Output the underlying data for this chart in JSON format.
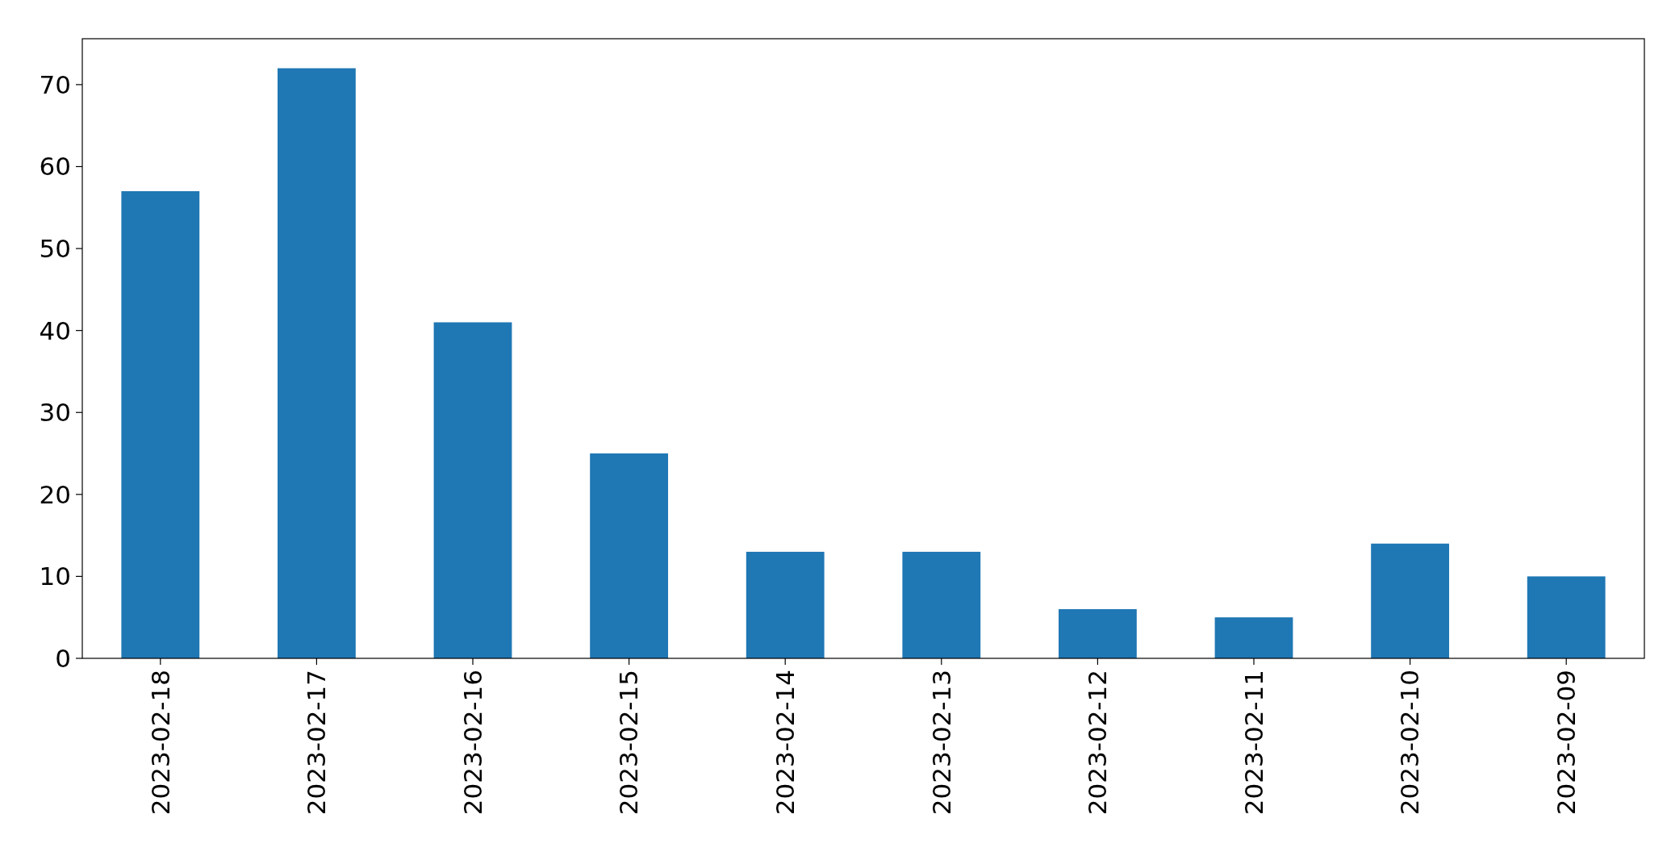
{
  "chart_data": {
    "type": "bar",
    "categories": [
      "2023-02-18",
      "2023-02-17",
      "2023-02-16",
      "2023-02-15",
      "2023-02-14",
      "2023-02-13",
      "2023-02-12",
      "2023-02-11",
      "2023-02-10",
      "2023-02-09"
    ],
    "values": [
      57,
      72,
      41,
      25,
      13,
      13,
      6,
      5,
      14,
      10
    ],
    "color": "#1f77b4",
    "ylim": [
      0,
      75.6
    ],
    "yticks": [
      0,
      10,
      20,
      30,
      40,
      50,
      60,
      70
    ],
    "grid": false
  }
}
